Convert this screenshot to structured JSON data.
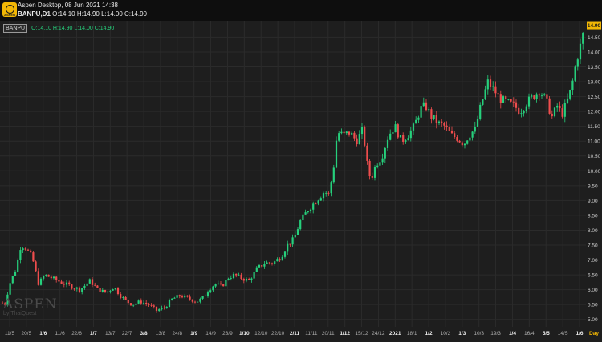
{
  "window": {
    "title": "Aspen Desktop, 08 Jun 2021 14:38",
    "symbol_line": "BANPU,D1",
    "ohlc_line": "O:14.10 H:14.90 L:14.00 C:14.90"
  },
  "app_icon": {
    "name": "aspen-logo-icon",
    "label": "ASPEN",
    "color": "#f2b705"
  },
  "legend": {
    "symbol": "BANPU",
    "values": "O:14.10 H:14.90 L:14.00 C:14.90"
  },
  "watermark": {
    "brand": "ASPEN",
    "by": "by ThaiQuest"
  },
  "colors": {
    "up": "#26d07c",
    "down": "#ef4d4d",
    "background": "#1e1e1e",
    "grid": "#2b2b2b",
    "last_price_bg": "#f2b705"
  },
  "chart_data": {
    "type": "candlestick",
    "symbol": "BANPU",
    "timeframe": "D1",
    "y_ticks": [
      "5.00",
      "5.50",
      "6.00",
      "6.50",
      "7.00",
      "7.50",
      "8.00",
      "8.50",
      "9.00",
      "9.50",
      "10.00",
      "10.50",
      "11.00",
      "11.50",
      "12.00",
      "12.50",
      "13.00",
      "13.50",
      "14.00",
      "14.50"
    ],
    "ylim": [
      4.75,
      15.05
    ],
    "last_price": "14.90",
    "x_labels": [
      "11/5",
      "20/5",
      "1/6",
      "11/6",
      "22/6",
      "1/7",
      "13/7",
      "22/7",
      "3/8",
      "13/8",
      "24/8",
      "1/9",
      "14/9",
      "23/9",
      "1/10",
      "12/10",
      "22/10",
      "2/11",
      "11/11",
      "20/11",
      "1/12",
      "15/12",
      "24/12",
      "2021",
      "18/1",
      "1/2",
      "10/2",
      "1/3",
      "10/3",
      "19/3",
      "1/4",
      "16/4",
      "5/5",
      "14/5",
      "1/6"
    ],
    "x_label_bold": [
      "1/6",
      "1/7",
      "3/8",
      "1/9",
      "1/10",
      "2/11",
      "1/12",
      "2021",
      "1/2",
      "1/3",
      "1/4",
      "5/5",
      "1/6"
    ],
    "x_axis_unit": "Day",
    "anchors": [
      [
        0,
        5.6
      ],
      [
        6,
        5.5
      ],
      [
        12,
        6.2
      ],
      [
        20,
        6.7
      ],
      [
        26,
        7.5
      ],
      [
        32,
        7.4
      ],
      [
        40,
        7.1
      ],
      [
        48,
        6.2
      ],
      [
        56,
        6.5
      ],
      [
        64,
        6.4
      ],
      [
        72,
        6.3
      ],
      [
        80,
        6.2
      ],
      [
        90,
        6.1
      ],
      [
        100,
        6.0
      ],
      [
        112,
        6.3
      ],
      [
        122,
        6.0
      ],
      [
        132,
        5.9
      ],
      [
        142,
        6.1
      ],
      [
        150,
        5.8
      ],
      [
        158,
        5.6
      ],
      [
        165,
        5.5
      ],
      [
        175,
        5.6
      ],
      [
        185,
        5.5
      ],
      [
        195,
        5.3
      ],
      [
        205,
        5.4
      ],
      [
        215,
        5.7
      ],
      [
        225,
        5.8
      ],
      [
        235,
        5.7
      ],
      [
        245,
        5.6
      ],
      [
        252,
        5.7
      ],
      [
        260,
        6.0
      ],
      [
        268,
        6.2
      ],
      [
        276,
        6.1
      ],
      [
        284,
        6.4
      ],
      [
        292,
        6.5
      ],
      [
        300,
        6.4
      ],
      [
        310,
        6.3
      ],
      [
        320,
        6.7
      ],
      [
        330,
        6.9
      ],
      [
        340,
        6.9
      ],
      [
        350,
        7.1
      ],
      [
        358,
        7.5
      ],
      [
        366,
        7.7
      ],
      [
        374,
        8.3
      ],
      [
        384,
        8.7
      ],
      [
        394,
        9.0
      ],
      [
        404,
        9.3
      ],
      [
        410,
        9.2
      ],
      [
        416,
        10.2
      ],
      [
        420,
        11.3
      ],
      [
        428,
        11.2
      ],
      [
        436,
        11.3
      ],
      [
        444,
        11.0
      ],
      [
        452,
        11.4
      ],
      [
        458,
        10.1
      ],
      [
        462,
        9.7
      ],
      [
        468,
        10.2
      ],
      [
        476,
        10.5
      ],
      [
        484,
        11.2
      ],
      [
        492,
        11.5
      ],
      [
        500,
        11.0
      ],
      [
        508,
        11.2
      ],
      [
        516,
        11.5
      ],
      [
        524,
        12.1
      ],
      [
        530,
        12.2
      ],
      [
        538,
        11.8
      ],
      [
        546,
        11.6
      ],
      [
        554,
        11.5
      ],
      [
        562,
        11.2
      ],
      [
        570,
        11.1
      ],
      [
        578,
        10.9
      ],
      [
        584,
        11.2
      ],
      [
        592,
        11.4
      ],
      [
        600,
        12.3
      ],
      [
        608,
        13.0
      ],
      [
        616,
        12.7
      ],
      [
        624,
        12.4
      ],
      [
        632,
        12.3
      ],
      [
        640,
        12.2
      ],
      [
        648,
        12.0
      ],
      [
        656,
        12.3
      ],
      [
        664,
        12.5
      ],
      [
        672,
        12.7
      ],
      [
        680,
        12.4
      ],
      [
        688,
        11.8
      ],
      [
        694,
        12.2
      ],
      [
        700,
        11.9
      ],
      [
        706,
        12.3
      ],
      [
        712,
        12.8
      ],
      [
        716,
        13.4
      ],
      [
        720,
        13.9
      ],
      [
        724,
        14.3
      ],
      [
        728,
        14.8
      ],
      [
        730,
        14.9
      ]
    ]
  }
}
